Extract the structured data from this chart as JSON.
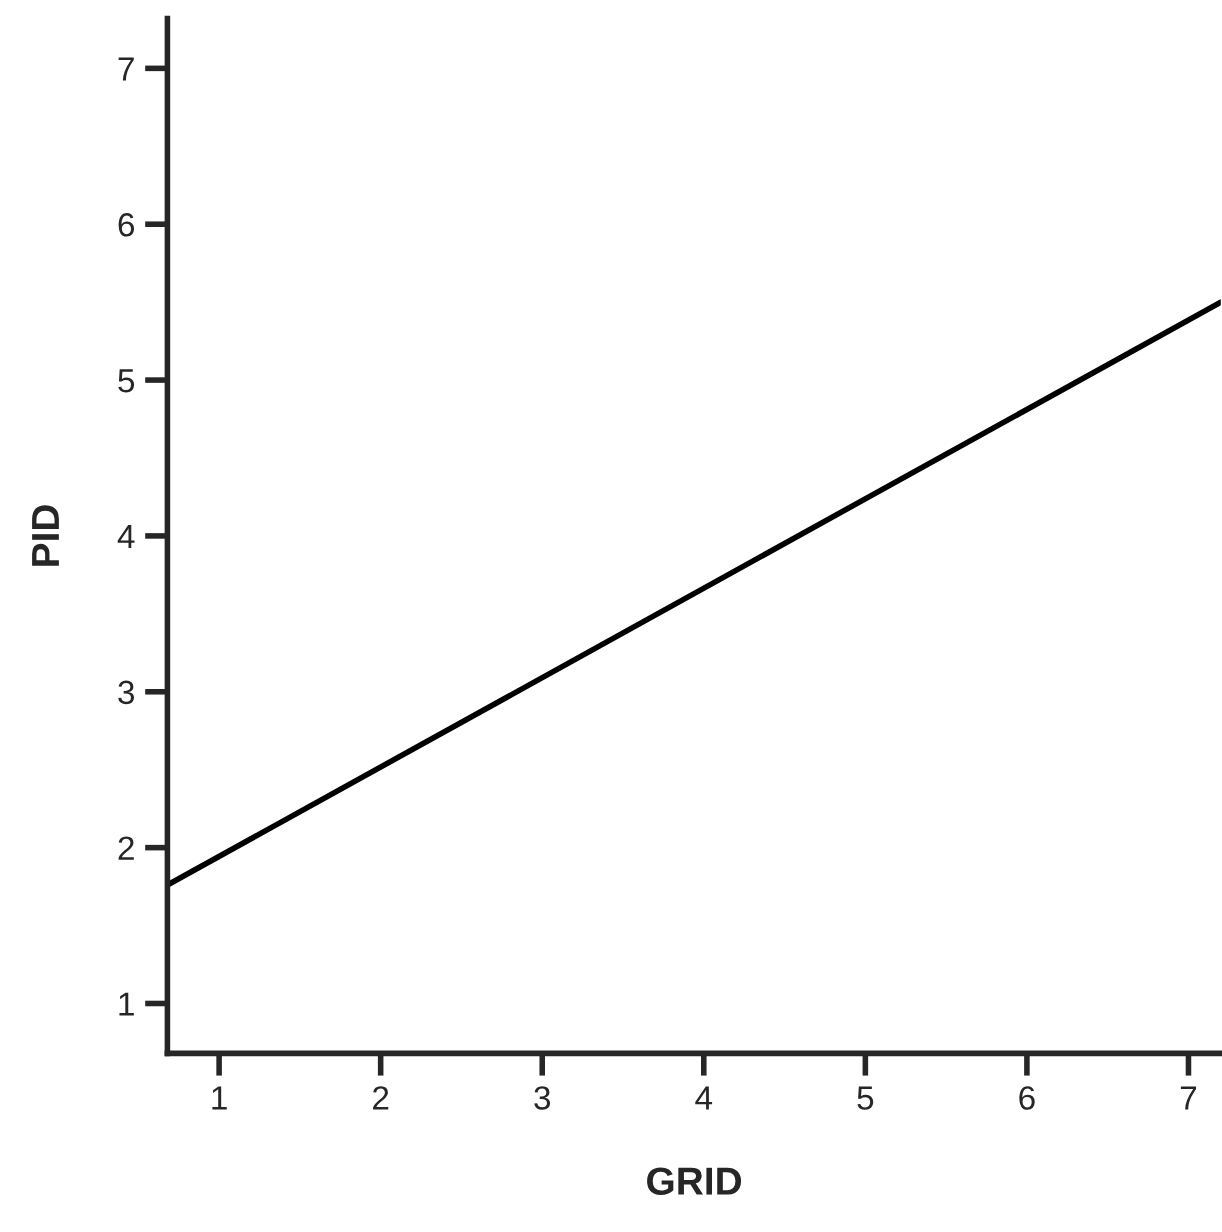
{
  "chart_data": {
    "type": "line",
    "xlabel": "GRID",
    "ylabel": "PID",
    "x": [
      0.68,
      7.2
    ],
    "series": [
      {
        "color": "#000000",
        "values": [
          1.76,
          5.5
        ]
      }
    ],
    "xlim": [
      0.68,
      7.2
    ],
    "ylim": [
      0.68,
      7.32
    ],
    "xticks": [
      1,
      2,
      3,
      4,
      5,
      6,
      7
    ],
    "yticks": [
      1,
      2,
      3,
      4,
      5,
      6,
      7
    ],
    "grid": false,
    "legend": false
  }
}
